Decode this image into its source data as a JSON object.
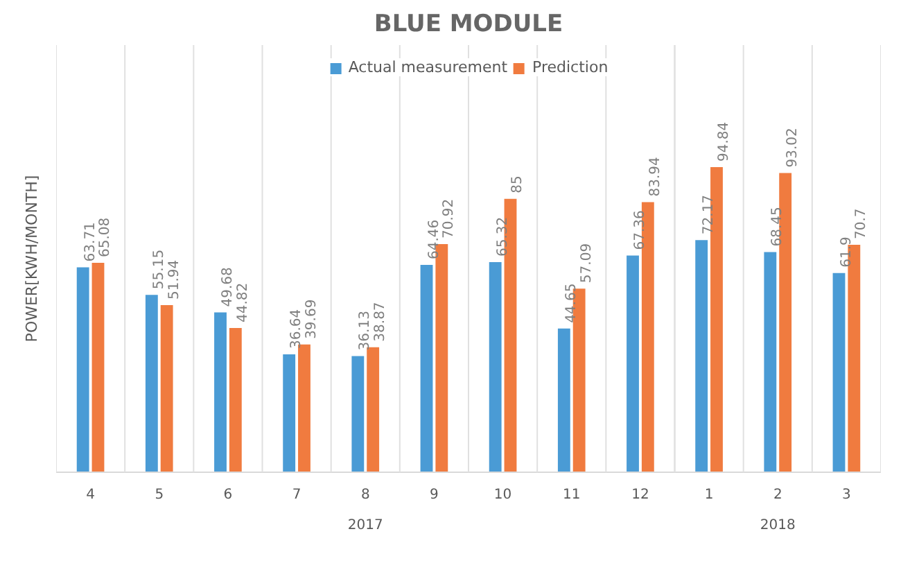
{
  "chart_data": {
    "type": "bar",
    "title": "BLUE MODULE",
    "ylabel": "POWER[KWH/MONTH]",
    "categories": [
      "4",
      "5",
      "6",
      "7",
      "8",
      "9",
      "10",
      "11",
      "12",
      "1",
      "2",
      "3"
    ],
    "series": [
      {
        "name": "Actual measurement",
        "color": "#4a9bd5",
        "values": [
          63.71,
          55.15,
          49.68,
          36.64,
          36.13,
          64.46,
          65.32,
          44.65,
          67.36,
          72.17,
          68.45,
          61.9
        ]
      },
      {
        "name": "Prediction",
        "color": "#f07b3f",
        "values": [
          65.08,
          51.94,
          44.82,
          39.69,
          38.87,
          70.92,
          85,
          57.09,
          83.94,
          94.84,
          93.02,
          70.7
        ]
      }
    ],
    "annotations": [
      "2017",
      "2018"
    ],
    "data_labels": true,
    "legend": "top",
    "grid": false
  }
}
